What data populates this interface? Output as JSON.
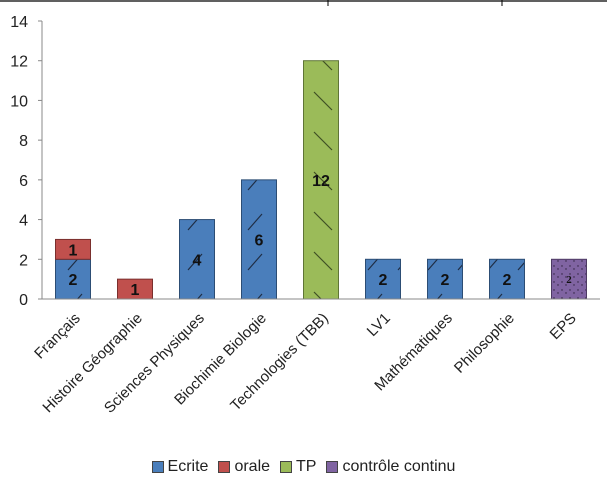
{
  "chart_data": {
    "type": "bar",
    "stacked": true,
    "categories": [
      "Français",
      "Histoire Géographie",
      "Sciences Physiques",
      "Biochimie Biologie",
      "Technologies (TBB)",
      "LV1",
      "Mathématiques",
      "Philosophie",
      "EPS"
    ],
    "series": [
      {
        "name": "Ecrite",
        "values": [
          2,
          0,
          4,
          6,
          0,
          2,
          2,
          2,
          0
        ],
        "color": "#4a7ebb"
      },
      {
        "name": "orale",
        "values": [
          1,
          1,
          0,
          0,
          0,
          0,
          0,
          0,
          0
        ],
        "color": "#c0504d"
      },
      {
        "name": "TP",
        "values": [
          0,
          0,
          0,
          0,
          12,
          0,
          0,
          0,
          0
        ],
        "color": "#9bbb59"
      },
      {
        "name": "contrôle continu",
        "values": [
          0,
          0,
          0,
          0,
          0,
          0,
          0,
          0,
          2
        ],
        "color": "#8064a2"
      }
    ],
    "ylim": [
      0,
      14
    ],
    "yticks": [
      0,
      2,
      4,
      6,
      8,
      10,
      12,
      14
    ],
    "legend_position": "bottom",
    "grid": false
  }
}
